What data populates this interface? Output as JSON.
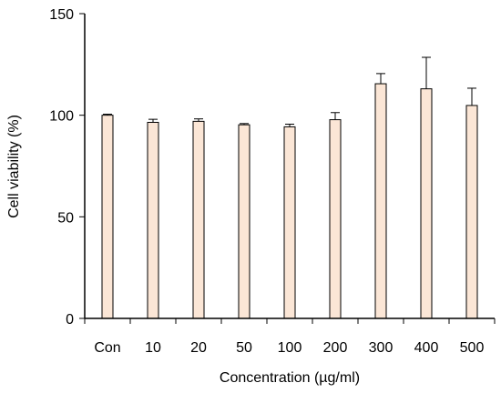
{
  "chart_data": {
    "type": "bar",
    "xlabel": "Concentration (µg/ml)",
    "ylabel": "Cell viability  (%)",
    "categories": [
      "Con",
      "10",
      "20",
      "50",
      "100",
      "200",
      "300",
      "400",
      "500"
    ],
    "values": [
      100,
      96.5,
      97,
      95.3,
      94.3,
      97.8,
      115.5,
      113,
      104.8
    ],
    "errors": [
      0.5,
      1.5,
      1.2,
      0.6,
      1.3,
      3.5,
      5,
      15.5,
      8.5
    ],
    "ylim": [
      0,
      150
    ],
    "yticks": [
      0,
      50,
      100,
      150
    ],
    "grid": false,
    "error_bars": "upper",
    "colors": {
      "bar_fill": "#fbe6d6",
      "bar_stroke": "#000000"
    }
  }
}
